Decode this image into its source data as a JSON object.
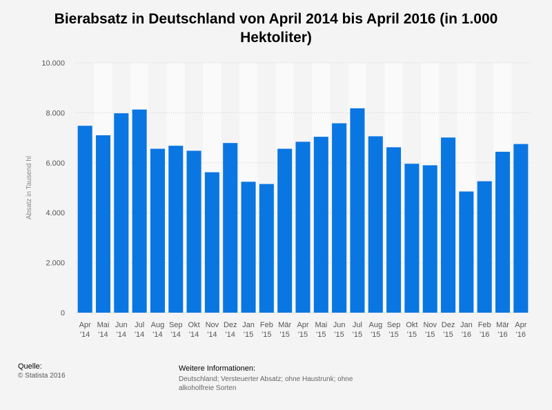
{
  "chart_data": {
    "type": "bar",
    "title": "Bierabsatz in Deutschland von April 2014 bis April 2016 (in 1.000 Hektoliter)",
    "ylabel": "Absatz in Tausend hl",
    "xlabel": "",
    "ylim": [
      0,
      10000
    ],
    "yticks": [
      {
        "value": 0,
        "label": "0"
      },
      {
        "value": 2000,
        "label": "2.000"
      },
      {
        "value": 4000,
        "label": "4.000"
      },
      {
        "value": 6000,
        "label": "6.000"
      },
      {
        "value": 8000,
        "label": "8.000"
      },
      {
        "value": 10000,
        "label": "10.000"
      }
    ],
    "grid": true,
    "color": "#0a76e2",
    "categories": [
      {
        "month": "Apr",
        "year": "'14"
      },
      {
        "month": "Mai",
        "year": "'14"
      },
      {
        "month": "Jun",
        "year": "'14"
      },
      {
        "month": "Jul",
        "year": "'14"
      },
      {
        "month": "Aug",
        "year": "'14"
      },
      {
        "month": "Sep",
        "year": "'14"
      },
      {
        "month": "Okt",
        "year": "'14"
      },
      {
        "month": "Nov",
        "year": "'14"
      },
      {
        "month": "Dez",
        "year": "'14"
      },
      {
        "month": "Jan",
        "year": "'15"
      },
      {
        "month": "Feb",
        "year": "'15"
      },
      {
        "month": "Mär",
        "year": "'15"
      },
      {
        "month": "Apr",
        "year": "'15"
      },
      {
        "month": "Mai",
        "year": "'15"
      },
      {
        "month": "Jun",
        "year": "'15"
      },
      {
        "month": "Jul",
        "year": "'15"
      },
      {
        "month": "Aug",
        "year": "'15"
      },
      {
        "month": "Sep",
        "year": "'15"
      },
      {
        "month": "Okt",
        "year": "'15"
      },
      {
        "month": "Nov",
        "year": "'15"
      },
      {
        "month": "Dez",
        "year": "'15"
      },
      {
        "month": "Jan",
        "year": "'16"
      },
      {
        "month": "Feb",
        "year": "'16"
      },
      {
        "month": "Mär",
        "year": "'16"
      },
      {
        "month": "Apr",
        "year": "'16"
      }
    ],
    "values": [
      7480,
      7100,
      7980,
      8130,
      6560,
      6680,
      6480,
      5620,
      6790,
      5240,
      5150,
      6560,
      6840,
      7040,
      7580,
      8180,
      7060,
      6620,
      5960,
      5900,
      7010,
      4850,
      5260,
      6440,
      6750
    ]
  },
  "footer": {
    "source_label": "Quelle:",
    "source_value": "© Statista 2016",
    "info_label": "Weitere Informationen:",
    "info_value": "Deutschland; Versteuerter Absatz; ohne Haustrunk; ohne alkoholfreie Sorten"
  }
}
